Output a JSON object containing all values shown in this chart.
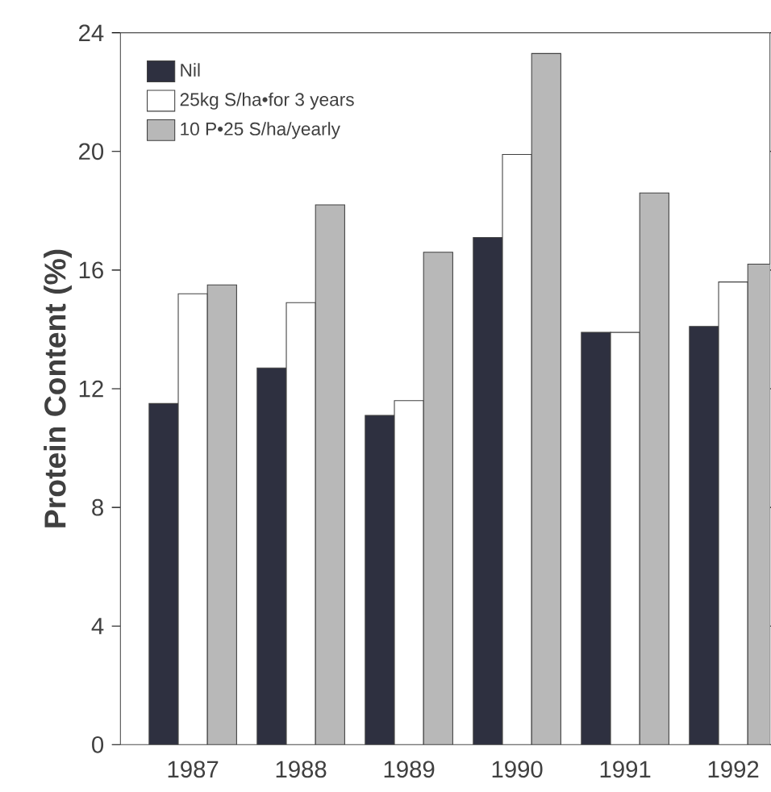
{
  "chart_data": {
    "type": "bar",
    "ylabel": "Protein Content (%)",
    "categories": [
      "1987",
      "1988",
      "1989",
      "1990",
      "1991",
      "1992"
    ],
    "series": [
      {
        "name": "Nil",
        "color": "#2e3040",
        "values": [
          11.5,
          12.7,
          11.1,
          17.1,
          13.9,
          14.1
        ]
      },
      {
        "name": "25kg S/ha•for 3 years",
        "color": "#ffffff",
        "values": [
          15.2,
          14.9,
          11.6,
          19.9,
          13.9,
          15.6
        ]
      },
      {
        "name": "10 P•25 S/ha/yearly",
        "color": "#b8b8b8",
        "values": [
          15.5,
          18.2,
          16.6,
          23.3,
          18.6,
          16.2
        ]
      }
    ],
    "ylim": [
      0,
      24
    ],
    "yticks": [
      0,
      4,
      8,
      12,
      16,
      20,
      24
    ],
    "legend": "top left",
    "grid": false
  }
}
